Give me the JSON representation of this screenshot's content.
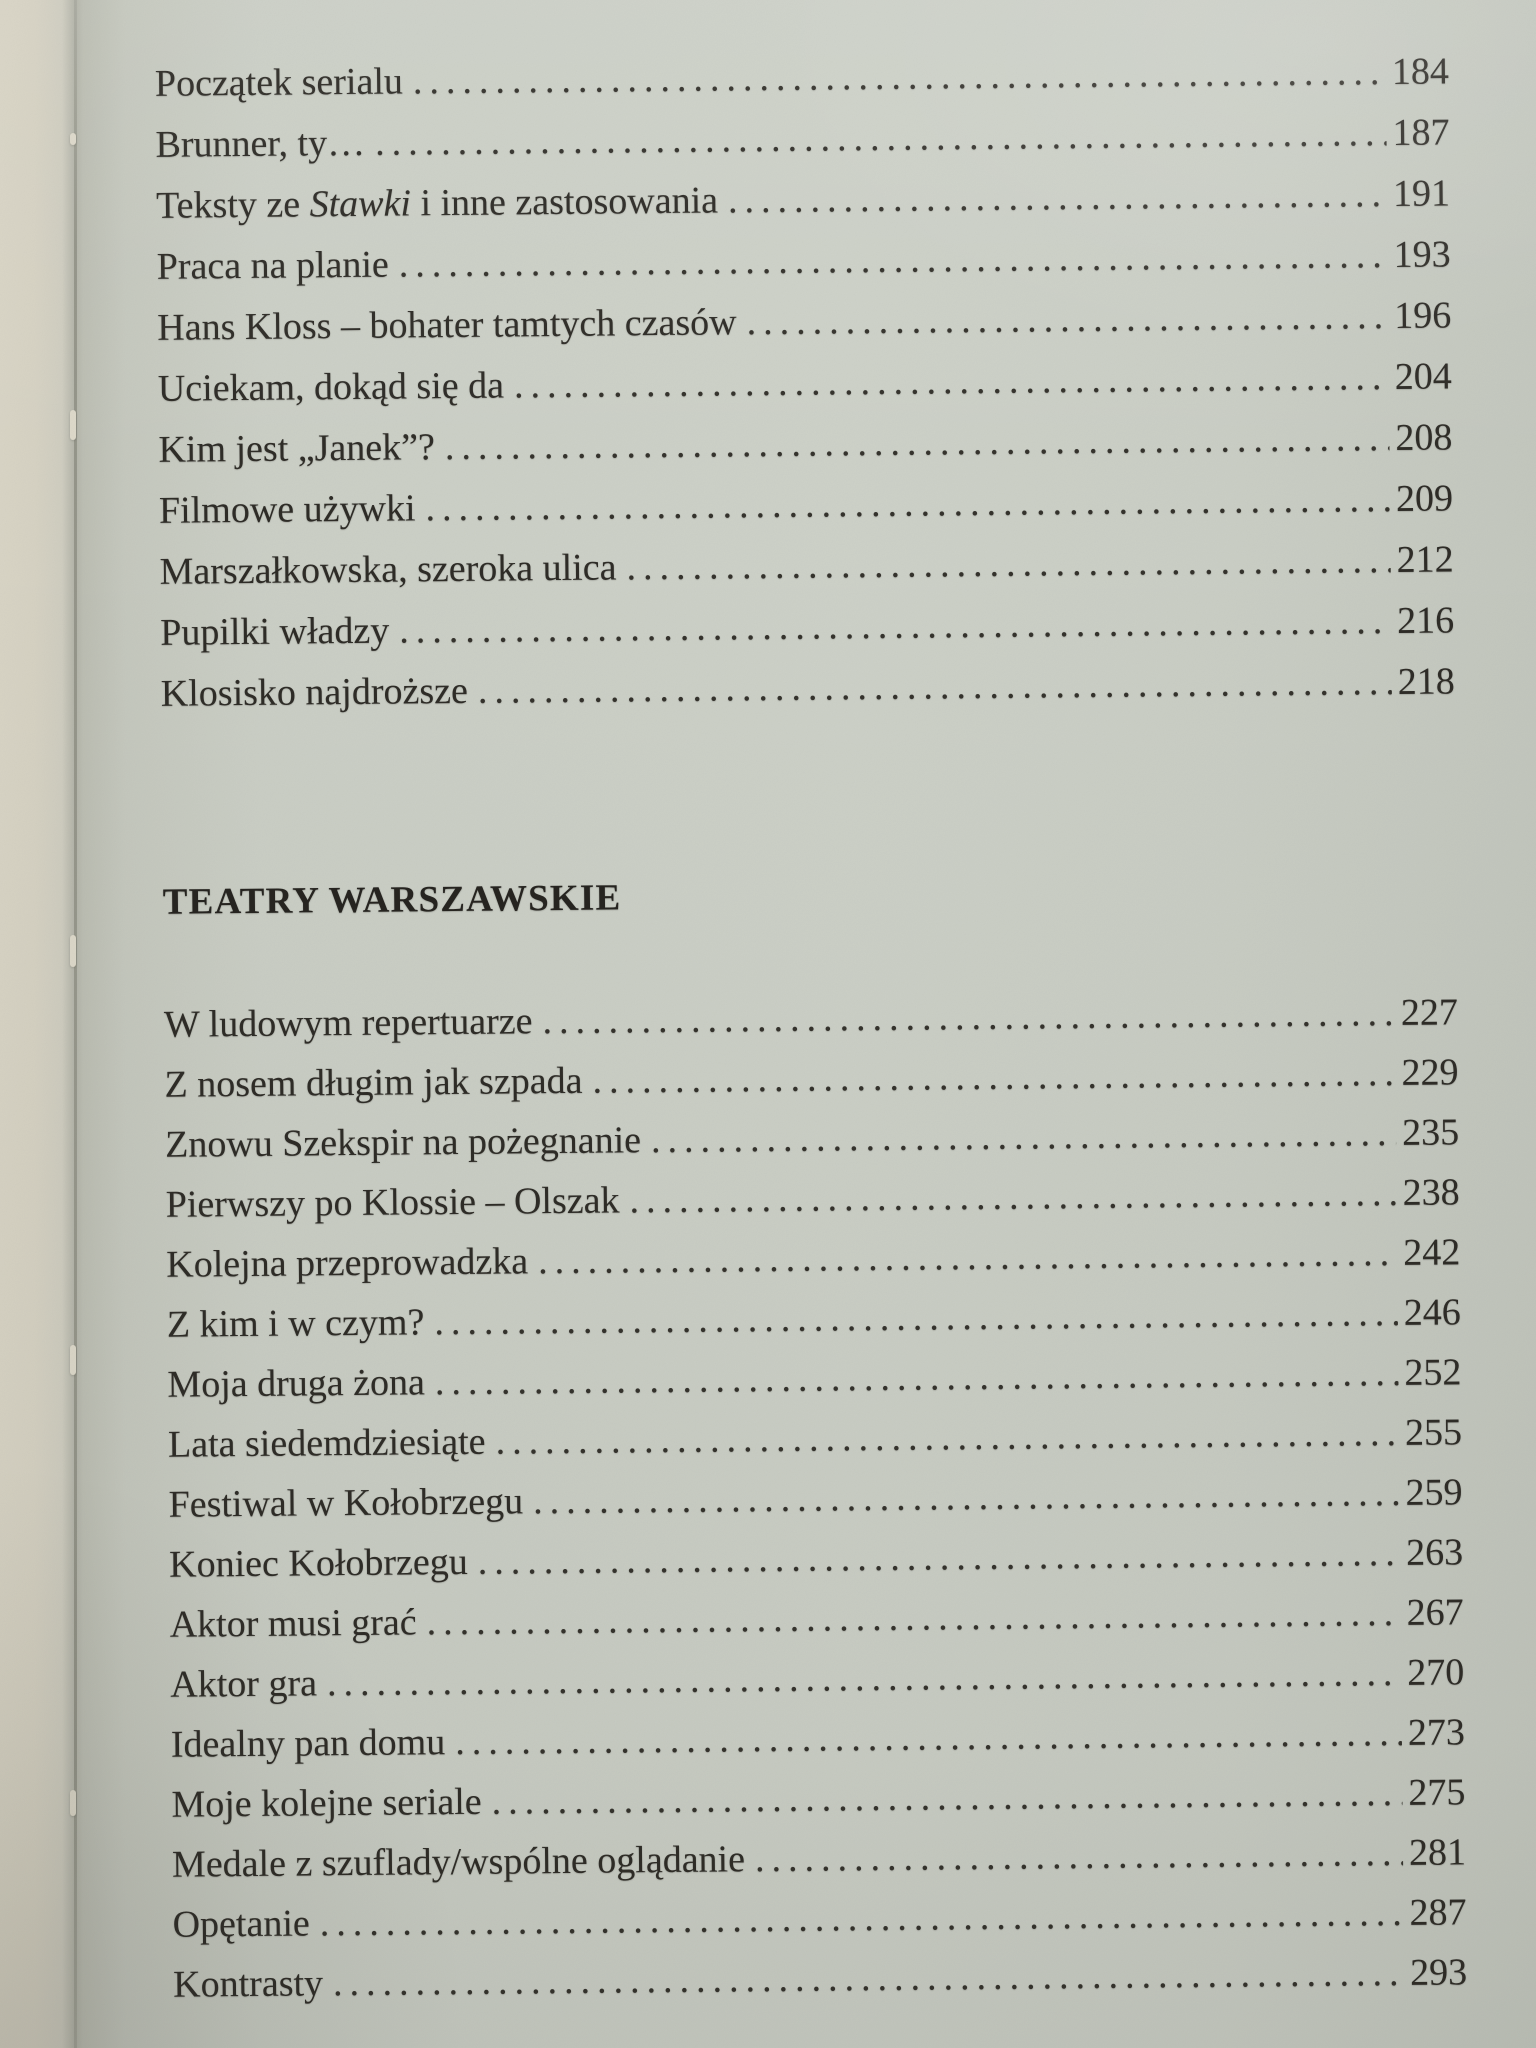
{
  "document": {
    "kind": "book-table-of-contents-page",
    "language": "pl"
  },
  "colors": {
    "paper": "#cbcfc6",
    "paper_edge": "#d8d4c5",
    "ink": "#2e2c27"
  },
  "toc": {
    "sections": [
      {
        "heading": null,
        "items": [
          {
            "title": "Początek serialu",
            "page": "184"
          },
          {
            "title": "Brunner, ty…",
            "page": "187"
          },
          {
            "title": "Teksty ze *Stawki* i inne zastosowania",
            "page": "191"
          },
          {
            "title": "Praca na planie",
            "page": "193"
          },
          {
            "title": "Hans Kloss – bohater tamtych czasów",
            "page": "196"
          },
          {
            "title": "Uciekam, dokąd się da",
            "page": "204"
          },
          {
            "title": "Kim jest „Janek”?",
            "page": "208"
          },
          {
            "title": "Filmowe używki",
            "page": "209"
          },
          {
            "title": "Marszałkowska, szeroka ulica",
            "page": "212"
          },
          {
            "title": "Pupilki władzy",
            "page": "216"
          },
          {
            "title": "Klosisko najdroższe",
            "page": "218"
          }
        ]
      },
      {
        "heading": "TEATRY WARSZAWSKIE",
        "items": [
          {
            "title": "W ludowym repertuarze",
            "page": "227"
          },
          {
            "title": "Z nosem długim jak szpada",
            "page": "229"
          },
          {
            "title": "Znowu Szekspir na pożegnanie",
            "page": "235"
          },
          {
            "title": "Pierwszy po Klossie – Olszak",
            "page": "238"
          },
          {
            "title": "Kolejna przeprowadzka",
            "page": "242"
          },
          {
            "title": "Z kim i w czym?",
            "page": "246"
          },
          {
            "title": "Moja druga żona",
            "page": "252"
          },
          {
            "title": "Lata siedemdziesiąte",
            "page": "255"
          },
          {
            "title": "Festiwal w Kołobrzegu",
            "page": "259"
          },
          {
            "title": "Koniec Kołobrzegu",
            "page": "263"
          },
          {
            "title": "Aktor musi grać",
            "page": "267"
          },
          {
            "title": "Aktor gra",
            "page": "270"
          },
          {
            "title": "Idealny pan domu",
            "page": "273"
          },
          {
            "title": "Moje kolejne seriale",
            "page": "275"
          },
          {
            "title": "Medale z szuflady/wspólne oglądanie",
            "page": "281"
          },
          {
            "title": "Opętanie",
            "page": "287"
          },
          {
            "title": "Kontrasty",
            "page": "293"
          }
        ]
      }
    ]
  }
}
